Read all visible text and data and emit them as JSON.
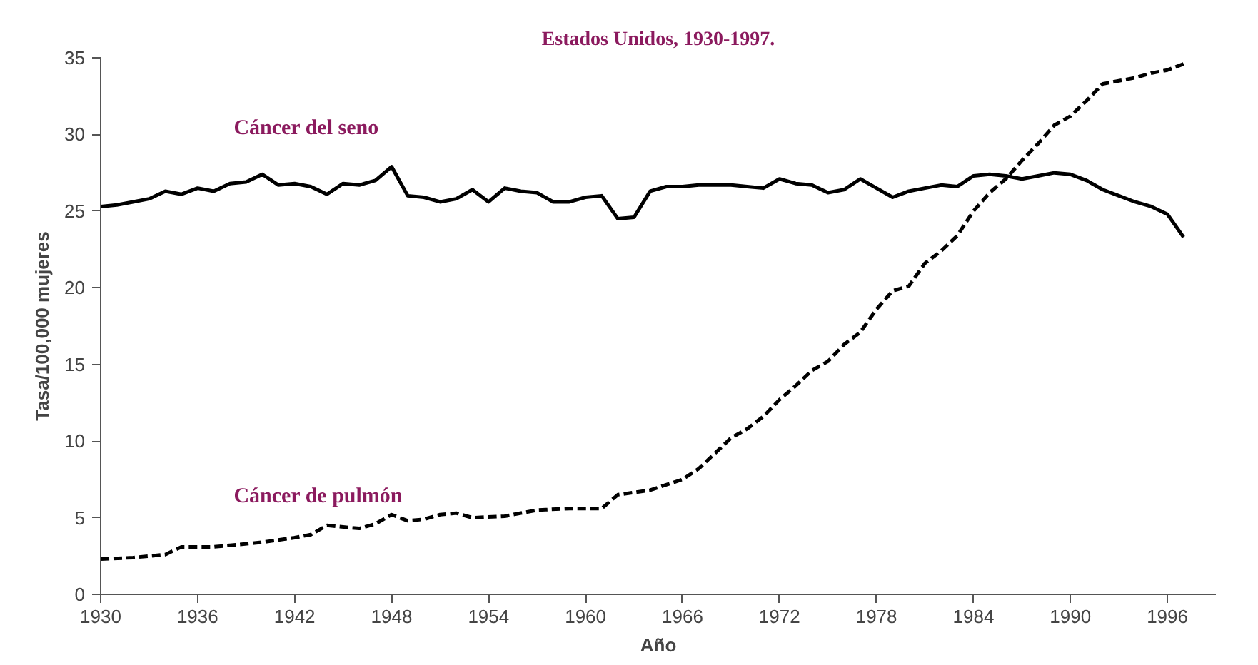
{
  "chart_data": {
    "type": "line",
    "title": "Estados Unidos, 1930-1997.",
    "xlabel": "Año",
    "ylabel": "Tasa/100,000 mujeres",
    "xlim": [
      1930,
      1999
    ],
    "xticks": [
      1930,
      1936,
      1942,
      1948,
      1954,
      1960,
      1966,
      1972,
      1978,
      1984,
      1990,
      1996
    ],
    "ylim": [
      0,
      35
    ],
    "yticks": [
      0,
      5,
      10,
      15,
      20,
      25,
      30,
      35
    ],
    "grid": false,
    "legend": false,
    "series": [
      {
        "name": "Cáncer del seno",
        "color": "#000000",
        "line_style": "solid",
        "x": [
          1930,
          1931,
          1932,
          1933,
          1934,
          1935,
          1936,
          1937,
          1938,
          1939,
          1940,
          1941,
          1942,
          1943,
          1944,
          1945,
          1946,
          1947,
          1948,
          1949,
          1950,
          1951,
          1952,
          1953,
          1954,
          1955,
          1956,
          1957,
          1958,
          1959,
          1960,
          1961,
          1962,
          1963,
          1964,
          1965,
          1966,
          1967,
          1968,
          1969,
          1970,
          1971,
          1972,
          1973,
          1974,
          1975,
          1976,
          1977,
          1978,
          1979,
          1980,
          1981,
          1982,
          1983,
          1984,
          1985,
          1986,
          1987,
          1988,
          1989,
          1990,
          1991,
          1992,
          1993,
          1994,
          1995,
          1996,
          1997
        ],
        "values": [
          25.3,
          25.4,
          25.6,
          25.8,
          26.3,
          26.1,
          26.5,
          26.3,
          26.8,
          26.9,
          27.4,
          26.7,
          26.8,
          26.6,
          26.1,
          26.8,
          26.7,
          27.0,
          27.9,
          26.0,
          25.9,
          25.6,
          25.8,
          26.4,
          25.6,
          26.5,
          26.3,
          26.2,
          25.6,
          25.6,
          25.9,
          26.0,
          24.5,
          24.6,
          26.3,
          26.6,
          26.6,
          26.7,
          26.7,
          26.7,
          26.6,
          26.5,
          27.1,
          26.8,
          26.7,
          26.2,
          26.4,
          27.1,
          26.5,
          25.9,
          26.3,
          26.5,
          26.7,
          26.6,
          27.3,
          27.4,
          27.3,
          27.1,
          27.3,
          27.5,
          27.4,
          27.0,
          26.4,
          26.0,
          25.6,
          25.3,
          24.8,
          23.3
        ]
      },
      {
        "name": "Cáncer de pulmón",
        "color": "#000000",
        "line_style": "dashed",
        "x": [
          1930,
          1932,
          1934,
          1935,
          1937,
          1938,
          1940,
          1942,
          1943,
          1944,
          1946,
          1947,
          1948,
          1949,
          1950,
          1951,
          1952,
          1953,
          1955,
          1957,
          1959,
          1961,
          1962,
          1964,
          1966,
          1967,
          1968,
          1969,
          1970,
          1971,
          1972,
          1973,
          1974,
          1975,
          1976,
          1977,
          1978,
          1979,
          1980,
          1981,
          1982,
          1983,
          1984,
          1985,
          1986,
          1987,
          1988,
          1989,
          1990,
          1991,
          1992,
          1993,
          1994,
          1995,
          1996,
          1997
        ],
        "values": [
          2.3,
          2.4,
          2.6,
          3.1,
          3.1,
          3.2,
          3.4,
          3.7,
          3.9,
          4.5,
          4.3,
          4.6,
          5.2,
          4.8,
          4.9,
          5.2,
          5.3,
          5.0,
          5.1,
          5.5,
          5.6,
          5.6,
          6.5,
          6.8,
          7.5,
          8.2,
          9.2,
          10.2,
          10.8,
          11.6,
          12.7,
          13.6,
          14.6,
          15.2,
          16.3,
          17.1,
          18.6,
          19.8,
          20.1,
          21.6,
          22.4,
          23.4,
          25.0,
          26.2,
          27.1,
          28.3,
          29.4,
          30.6,
          31.2,
          32.2,
          33.3,
          33.5,
          33.7,
          34.0,
          34.2,
          34.6
        ]
      }
    ]
  }
}
